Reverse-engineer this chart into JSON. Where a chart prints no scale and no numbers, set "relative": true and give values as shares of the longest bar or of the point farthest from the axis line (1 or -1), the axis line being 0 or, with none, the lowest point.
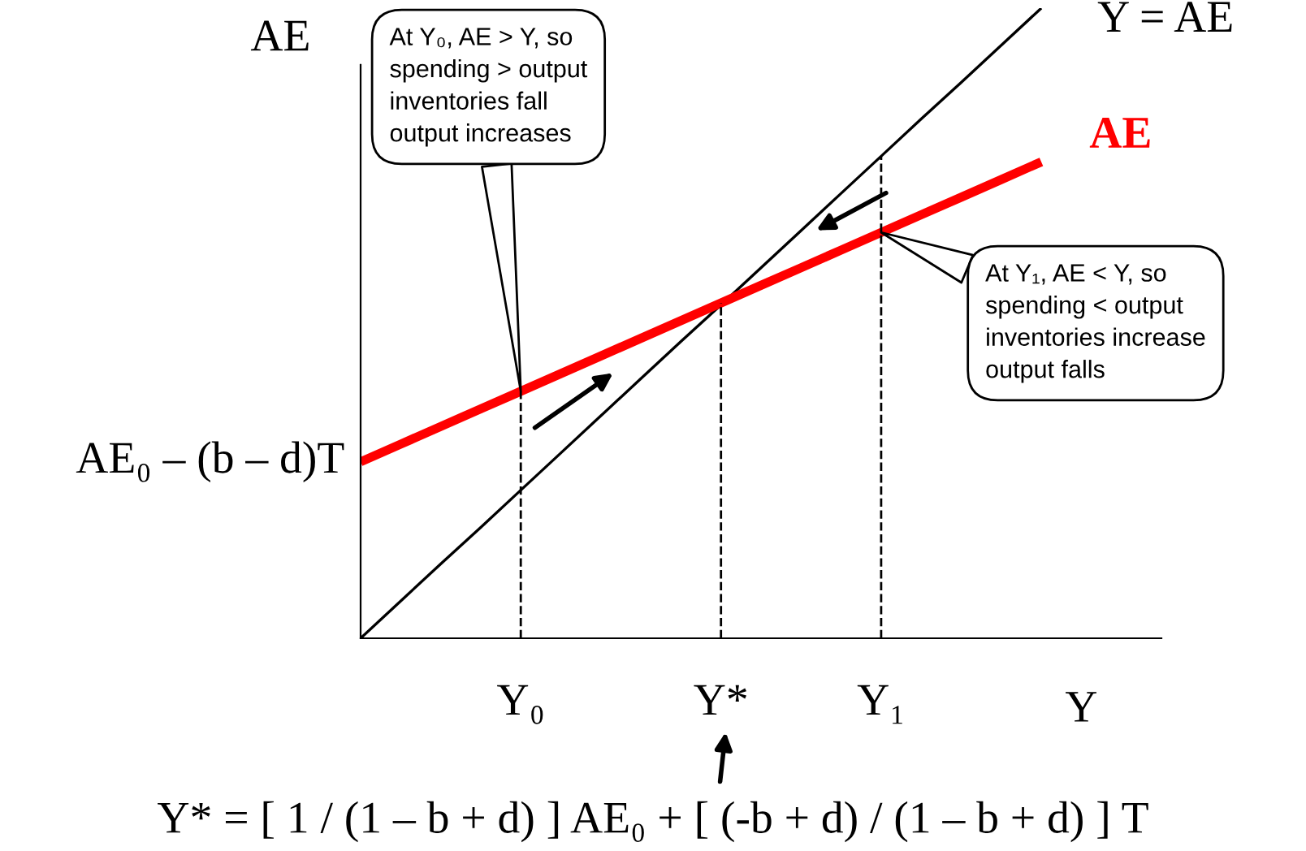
{
  "chart_data": {
    "type": "line",
    "relative": true,
    "xlabel": "Y",
    "ylabel": "AE",
    "categories": [
      null,
      null,
      null,
      null,
      "Y₀",
      null,
      null,
      null,
      null,
      "Y*",
      null,
      null,
      null,
      "Y₁",
      null,
      null,
      null,
      null,
      null,
      null,
      null
    ],
    "series": [
      {
        "name": "Y = AE",
        "color": "#000000",
        "values": [
          0,
          0.059,
          0.118,
          0.176,
          0.235,
          0.294,
          0.353,
          0.412,
          0.471,
          0.529,
          0.588,
          0.647,
          0.706,
          0.765,
          0.824,
          0.882,
          0.941,
          1.0,
          null,
          null,
          null
        ]
      },
      {
        "name": "AE",
        "color": "#ff0000",
        "values": [
          0.28,
          0.308,
          0.336,
          0.364,
          0.392,
          0.42,
          0.448,
          0.476,
          0.504,
          0.532,
          0.56,
          0.588,
          0.616,
          0.644,
          0.672,
          0.7,
          0.728,
          0.756,
          null,
          null,
          null
        ]
      }
    ],
    "ref_lines": [
      {
        "axis": "x",
        "value": "Y₀",
        "line_style": "dashed"
      },
      {
        "axis": "x",
        "value": "Y*",
        "line_style": "dashed"
      },
      {
        "axis": "x",
        "value": "Y₁",
        "line_style": "dashed"
      }
    ],
    "annotations": [
      "At Y₀, AE > Y, so\nspending > output\ninventories fall\noutput increases",
      "At Y₁, AE < Y, so\nspending < output\ninventories increase\noutput falls",
      "AE₀ – (b – d)T",
      "Y* = [ 1 / (1 – b + d) ] AE₀ + [ (-b + d) / (1 – b + d) ] T"
    ],
    "legend": false,
    "grid": false,
    "marker": "none",
    "line_style": "solid"
  }
}
